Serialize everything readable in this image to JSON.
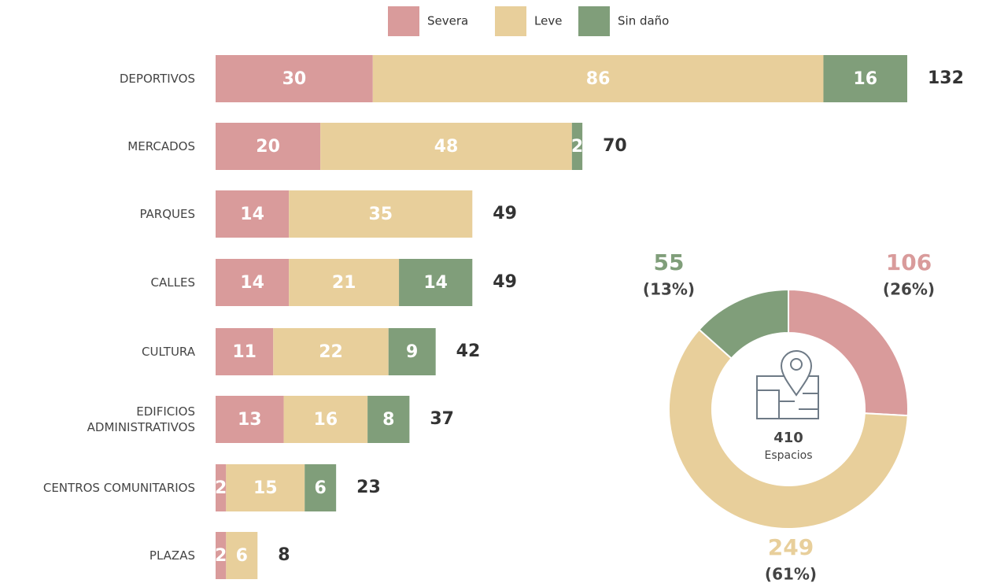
{
  "chart_data": [
    {
      "type": "stacked-bar-horizontal",
      "categories": [
        "DEPORTIVOS",
        "MERCADOS",
        "PARQUES",
        "CALLES",
        "CULTURA",
        "EDIFICIOS\nADMINISTRATIVOS",
        "CENTROS COMUNITARIOS",
        "PLAZAS"
      ],
      "series": [
        {
          "name": "Severa",
          "color": "#d99b9b",
          "values": [
            30,
            20,
            14,
            14,
            11,
            13,
            2,
            2
          ]
        },
        {
          "name": "Leve",
          "color": "#e8cf9b",
          "values": [
            86,
            48,
            35,
            21,
            22,
            16,
            15,
            6
          ]
        },
        {
          "name": "Sin daño",
          "color": "#809e7a",
          "values": [
            16,
            2,
            null,
            14,
            9,
            8,
            6,
            null
          ]
        }
      ],
      "totals": [
        132,
        70,
        49,
        49,
        42,
        37,
        23,
        8
      ],
      "legend": "top"
    },
    {
      "type": "donut",
      "categories": [
        "Severa",
        "Leve",
        "Sin daño"
      ],
      "values": [
        106,
        249,
        55
      ],
      "colors": [
        "#d99b9b",
        "#e8cf9b",
        "#809e7a"
      ],
      "percent_labels": [
        "(26%)",
        "(61%)",
        "(13%)"
      ],
      "total": 410,
      "center_label": "Espacios"
    }
  ]
}
